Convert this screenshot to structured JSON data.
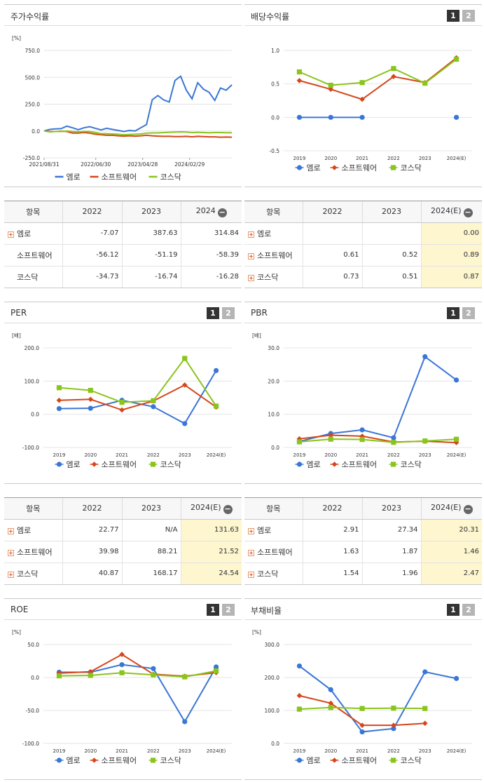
{
  "colors": {
    "blue": "#3a76d6",
    "red": "#d6461a",
    "green": "#8ac41c",
    "highlight": "#fdf6cf"
  },
  "legend_labels": [
    "엠로",
    "소프트웨어",
    "코스닥"
  ],
  "pagination": [
    "1",
    "2"
  ],
  "charts": {
    "stock": {
      "title": "주가수익률",
      "unit": "[%]",
      "chart_data": {
        "type": "line",
        "x_tick_labels": [
          "2021/08/31",
          "2022/06/30",
          "2023/04/28",
          "2024/02/29"
        ],
        "y_ticks": [
          "750.0",
          "500.0",
          "250.0",
          "0.0",
          "-250.0"
        ],
        "ylim": [
          -250,
          750
        ],
        "x_range": [
          0,
          40
        ],
        "x_tick_positions": [
          0,
          11,
          21,
          31
        ],
        "series": [
          {
            "name": "엠로",
            "color": "#3a76d6",
            "values": [
              0,
              15,
              20,
              22,
              45,
              30,
              12,
              30,
              40,
              25,
              10,
              25,
              15,
              5,
              -5,
              5,
              0,
              30,
              60,
              290,
              330,
              290,
              270,
              470,
              510,
              380,
              300,
              450,
              390,
              360,
              285,
              400,
              380,
              430
            ]
          },
          {
            "name": "소프트웨어",
            "color": "#d6461a",
            "values": [
              0,
              -5,
              -5,
              -2,
              -5,
              -20,
              -20,
              -15,
              -20,
              -30,
              -35,
              -40,
              -40,
              -45,
              -48,
              -45,
              -48,
              -45,
              -40,
              -45,
              -48,
              -50,
              -50,
              -52,
              -52,
              -50,
              -55,
              -50,
              -52,
              -55,
              -55,
              -58,
              -56,
              -58
            ]
          },
          {
            "name": "코스닥",
            "color": "#8ac41c",
            "values": [
              0,
              -8,
              -5,
              -5,
              0,
              -5,
              -8,
              -5,
              -5,
              -15,
              -25,
              -25,
              -28,
              -30,
              -35,
              -33,
              -30,
              -28,
              -20,
              -18,
              -18,
              -15,
              -12,
              -10,
              -8,
              -10,
              -15,
              -12,
              -15,
              -17,
              -15,
              -15,
              -16,
              -16
            ]
          }
        ]
      }
    },
    "dividend": {
      "title": "배당수익률",
      "chart_data": {
        "type": "line",
        "categories": [
          "2019",
          "2020",
          "2021",
          "2022",
          "2023",
          "2024(E)"
        ],
        "y_ticks": [
          "1.0",
          "0.5",
          "0.0",
          "-0.5"
        ],
        "ylim": [
          -0.5,
          1.0
        ],
        "series": [
          {
            "name": "엠로",
            "color": "#3a76d6",
            "marker": "circle",
            "values": [
              0.0,
              0.0,
              0.0,
              null,
              null,
              0.0
            ]
          },
          {
            "name": "소프트웨어",
            "color": "#d6461a",
            "marker": "diamond",
            "values": [
              0.55,
              0.42,
              0.27,
              0.61,
              0.52,
              0.89
            ]
          },
          {
            "name": "코스닥",
            "color": "#8ac41c",
            "marker": "square",
            "values": [
              0.68,
              0.48,
              0.52,
              0.73,
              0.51,
              0.87
            ]
          }
        ]
      }
    },
    "per": {
      "title": "PER",
      "unit": "[배]",
      "chart_data": {
        "type": "line",
        "categories": [
          "2019",
          "2020",
          "2021",
          "2022",
          "2023",
          "2024(E)"
        ],
        "y_ticks": [
          "200.0",
          "100.0",
          "0.0",
          "-100.0"
        ],
        "ylim": [
          -100,
          200
        ],
        "series": [
          {
            "name": "엠로",
            "color": "#3a76d6",
            "marker": "circle",
            "values": [
              17,
              18,
              42,
              22.77,
              -28,
              131.63
            ]
          },
          {
            "name": "소프트웨어",
            "color": "#d6461a",
            "marker": "diamond",
            "values": [
              42,
              45,
              13,
              39.98,
              88.21,
              21.52
            ]
          },
          {
            "name": "코스닥",
            "color": "#8ac41c",
            "marker": "square",
            "values": [
              80,
              72,
              36,
              40.87,
              168.17,
              24.54
            ]
          }
        ]
      }
    },
    "pbr": {
      "title": "PBR",
      "unit": "[배]",
      "chart_data": {
        "type": "line",
        "categories": [
          "2019",
          "2020",
          "2021",
          "2022",
          "2023",
          "2024(E)"
        ],
        "y_ticks": [
          "30.0",
          "20.0",
          "10.0",
          "0.0"
        ],
        "ylim": [
          0,
          30
        ],
        "series": [
          {
            "name": "엠로",
            "color": "#3a76d6",
            "marker": "circle",
            "values": [
              1.8,
              4.2,
              5.3,
              2.91,
              27.34,
              20.31
            ]
          },
          {
            "name": "소프트웨어",
            "color": "#d6461a",
            "marker": "diamond",
            "values": [
              2.6,
              3.7,
              3.4,
              1.63,
              1.87,
              1.46
            ]
          },
          {
            "name": "코스닥",
            "color": "#8ac41c",
            "marker": "square",
            "values": [
              1.7,
              2.5,
              2.4,
              1.54,
              1.96,
              2.47
            ]
          }
        ]
      }
    },
    "roe": {
      "title": "ROE",
      "unit": "[%]",
      "chart_data": {
        "type": "line",
        "categories": [
          "2019",
          "2020",
          "2021",
          "2022",
          "2023",
          "2024(E)"
        ],
        "y_ticks": [
          "50.0",
          "0.0",
          "-50.0",
          "-100.0"
        ],
        "ylim": [
          -100,
          50
        ],
        "series": [
          {
            "name": "엠로",
            "color": "#3a76d6",
            "marker": "circle",
            "values": [
              8,
              8,
              19.5,
              13.5,
              -67,
              16
            ]
          },
          {
            "name": "소프트웨어",
            "color": "#d6461a",
            "marker": "diamond",
            "values": [
              6.5,
              8.8,
              35,
              5,
              2,
              7.5
            ]
          },
          {
            "name": "코스닥",
            "color": "#8ac41c",
            "marker": "square",
            "values": [
              2.5,
              3.2,
              7.2,
              4,
              1,
              10
            ]
          }
        ]
      }
    },
    "debt": {
      "title": "부채비율",
      "unit": "[%]",
      "chart_data": {
        "type": "line",
        "categories": [
          "2019",
          "2020",
          "2021",
          "2022",
          "2023",
          "2024(E)"
        ],
        "y_ticks": [
          "300.0",
          "200.0",
          "100.0",
          "0.0"
        ],
        "ylim": [
          0,
          300
        ],
        "series": [
          {
            "name": "엠로",
            "color": "#3a76d6",
            "marker": "circle",
            "values": [
              235,
              163,
              35,
              45,
              217,
              197
            ]
          },
          {
            "name": "소프트웨어",
            "color": "#d6461a",
            "marker": "diamond",
            "values": [
              145,
              122,
              55,
              55,
              61,
              null
            ]
          },
          {
            "name": "코스닥",
            "color": "#8ac41c",
            "marker": "square",
            "values": [
              104,
              109,
              106,
              107,
              106,
              null
            ]
          }
        ]
      }
    }
  },
  "tables": {
    "stock": {
      "headers": [
        "항목",
        "2022",
        "2023",
        "2024"
      ],
      "rows": [
        {
          "name": "엠로",
          "expand": true,
          "values": [
            "-7.07",
            "387.63",
            "314.84"
          ]
        },
        {
          "name": "소프트웨어",
          "expand": false,
          "values": [
            "-56.12",
            "-51.19",
            "-58.39"
          ]
        },
        {
          "name": "코스닥",
          "expand": false,
          "values": [
            "-34.73",
            "-16.74",
            "-16.28"
          ]
        }
      ]
    },
    "dividend": {
      "headers": [
        "항목",
        "2022",
        "2023",
        "2024(E)"
      ],
      "rows": [
        {
          "name": "엠로",
          "expand": true,
          "values": [
            "",
            "",
            "0.00"
          ]
        },
        {
          "name": "소프트웨어",
          "expand": true,
          "values": [
            "0.61",
            "0.52",
            "0.89"
          ]
        },
        {
          "name": "코스닥",
          "expand": true,
          "values": [
            "0.73",
            "0.51",
            "0.87"
          ]
        }
      ]
    },
    "per": {
      "headers": [
        "항목",
        "2022",
        "2023",
        "2024(E)"
      ],
      "rows": [
        {
          "name": "엠로",
          "expand": true,
          "values": [
            "22.77",
            "N/A",
            "131.63"
          ]
        },
        {
          "name": "소프트웨어",
          "expand": true,
          "values": [
            "39.98",
            "88.21",
            "21.52"
          ]
        },
        {
          "name": "코스닥",
          "expand": true,
          "values": [
            "40.87",
            "168.17",
            "24.54"
          ]
        }
      ]
    },
    "pbr": {
      "headers": [
        "항목",
        "2022",
        "2023",
        "2024(E)"
      ],
      "rows": [
        {
          "name": "엠로",
          "expand": true,
          "values": [
            "2.91",
            "27.34",
            "20.31"
          ]
        },
        {
          "name": "소프트웨어",
          "expand": true,
          "values": [
            "1.63",
            "1.87",
            "1.46"
          ]
        },
        {
          "name": "코스닥",
          "expand": true,
          "values": [
            "1.54",
            "1.96",
            "2.47"
          ]
        }
      ]
    }
  }
}
